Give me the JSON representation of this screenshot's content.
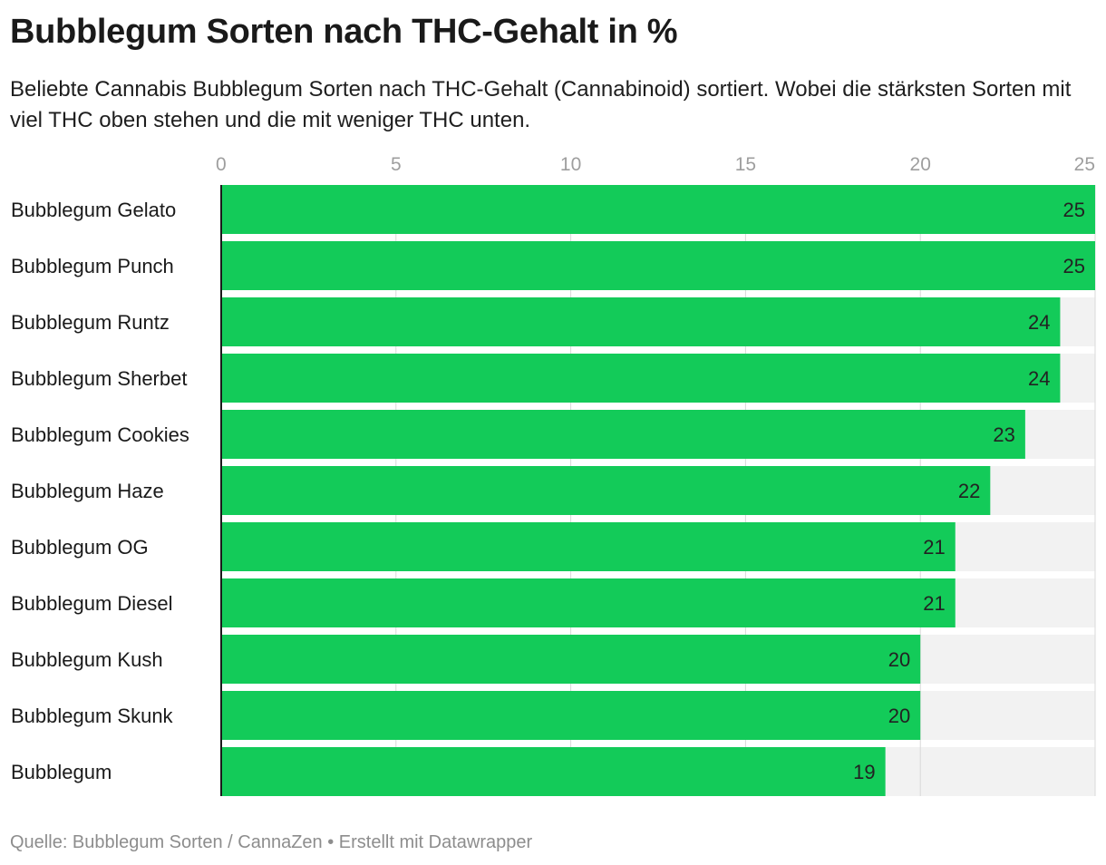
{
  "chart_data": {
    "type": "bar",
    "orientation": "horizontal",
    "title": "Bubblegum Sorten nach THC-Gehalt in %",
    "subtitle": "Beliebte Cannabis Bubblegum Sorten nach THC-Gehalt (Cannabinoid) sortiert. Wobei die stärksten Sorten mit viel THC oben stehen und die mit weniger THC unten.",
    "categories": [
      "Bubblegum Gelato",
      "Bubblegum Punch",
      "Bubblegum Runtz",
      "Bubblegum Sherbet",
      "Bubblegum Cookies",
      "Bubblegum Haze",
      "Bubblegum OG",
      "Bubblegum Diesel",
      "Bubblegum Kush",
      "Bubblegum Skunk",
      "Bubblegum"
    ],
    "values": [
      25,
      25,
      24,
      24,
      23,
      22,
      21,
      21,
      20,
      20,
      19
    ],
    "xlim": [
      0,
      25
    ],
    "xticks": [
      0,
      5,
      10,
      15,
      20,
      25
    ],
    "bar_color": "#13cb59",
    "track_color": "#f2f2f2",
    "grid": true,
    "source": "Quelle: Bubblegum Sorten / CannaZen • Erstellt mit Datawrapper"
  }
}
